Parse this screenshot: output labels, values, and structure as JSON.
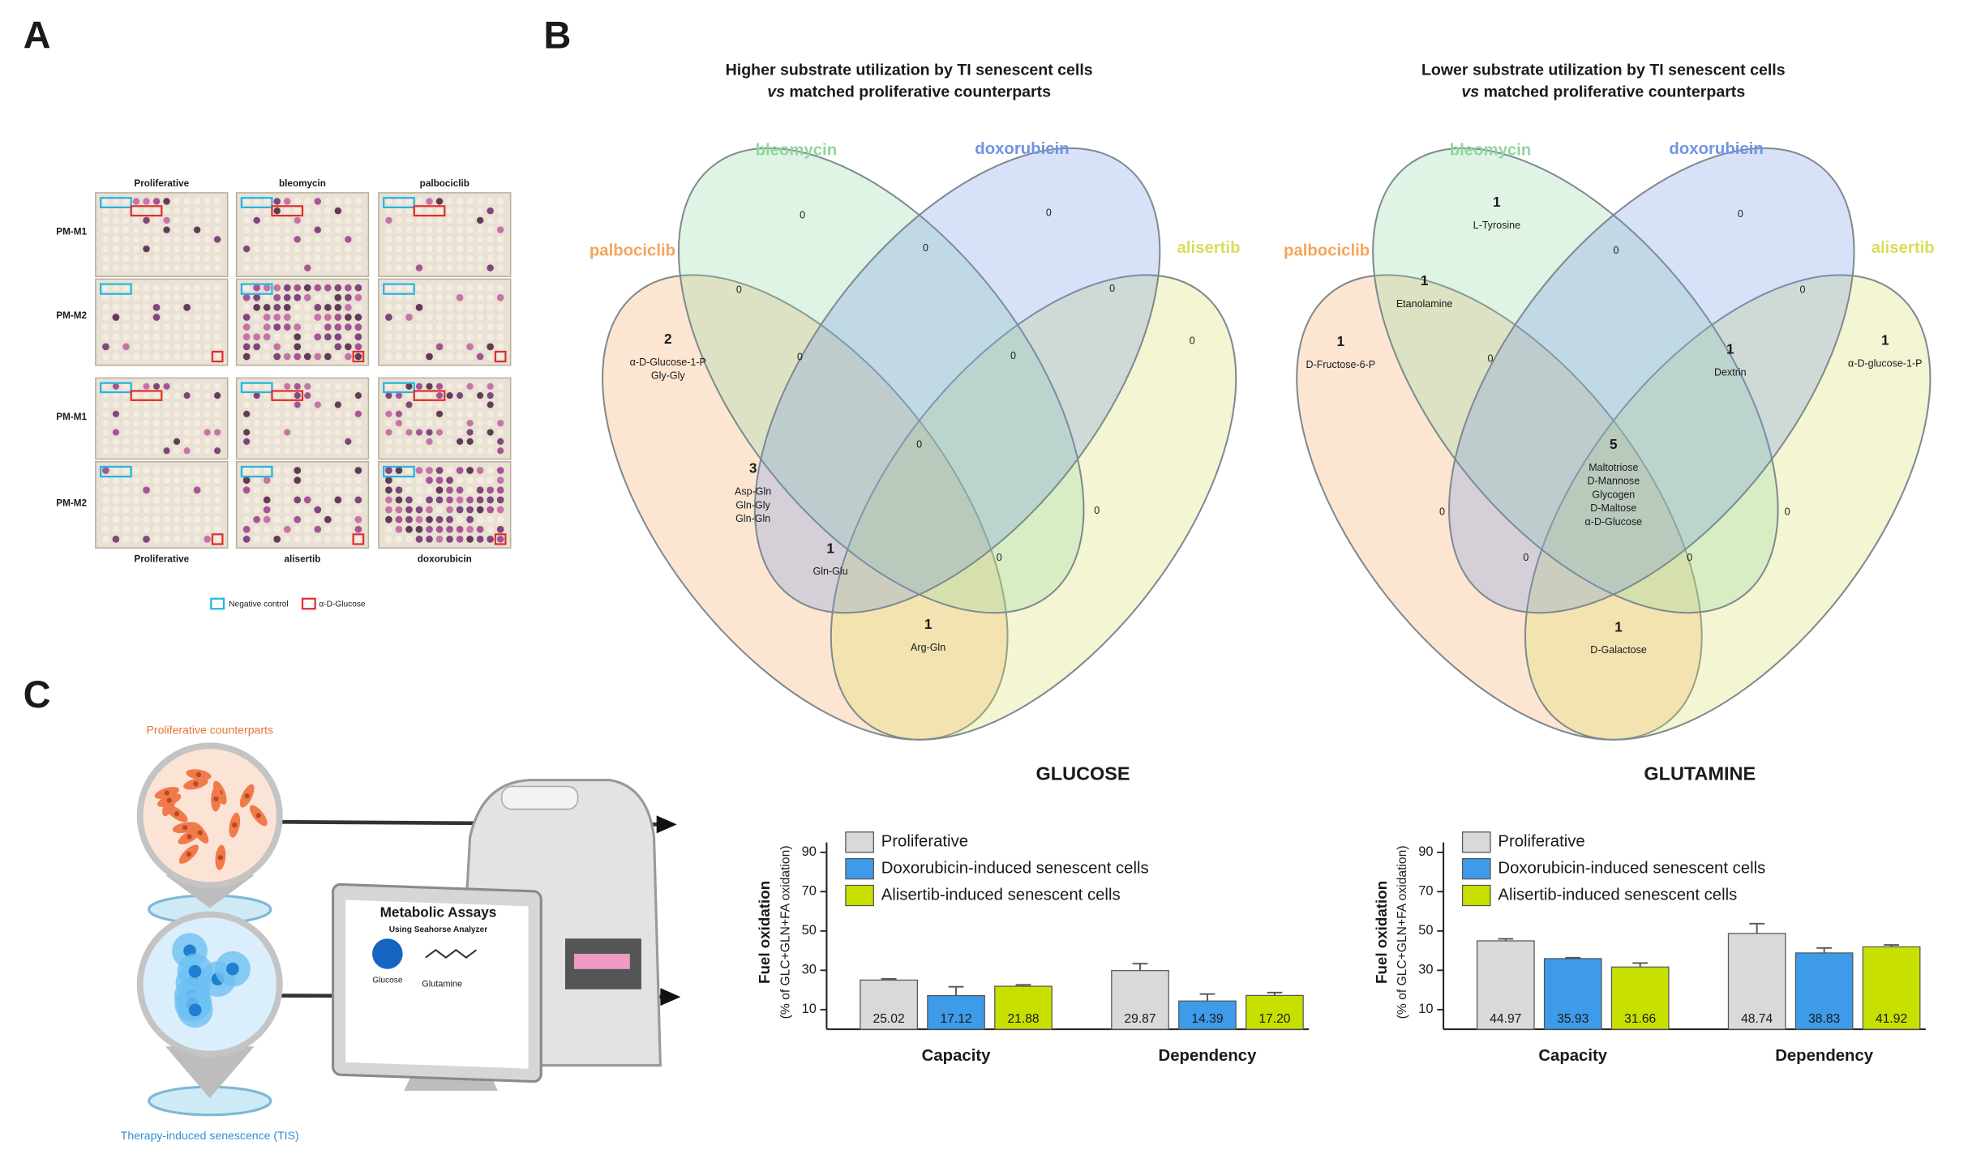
{
  "panel_labels": [
    "A",
    "B",
    "C"
  ],
  "panel_a": {
    "plates_top": [
      "Proliferative",
      "bleomycin",
      "palbociclib"
    ],
    "plates_bottom": [
      "Proliferative",
      "alisertib",
      "doxorubicin"
    ],
    "rows": [
      "PM-M1",
      "PM-M2",
      "PM-M1",
      "PM-M2"
    ],
    "legend": [
      "Negative control",
      "α-D-Glucose"
    ]
  },
  "panel_b": {
    "venns": [
      {
        "title": [
          "Higher substrate utilization by TI senescent cells",
          "vs",
          " matched proliferative counterparts"
        ],
        "sets": [
          "bleomycin",
          "doxorubicin",
          "palbociclib",
          "alisertib"
        ],
        "colors": [
          "#8fd6a0",
          "#6f93e6",
          "#f5a55c",
          "#d9dc5c"
        ],
        "regions": [
          {
            "count": 0,
            "items": []
          },
          {
            "count": 0,
            "items": []
          },
          {
            "count": 0,
            "items": []
          },
          {
            "count": 0,
            "items": []
          },
          {
            "count": 0,
            "items": []
          },
          {
            "count": 2,
            "items": [
              "α-D-Glucose-1-P",
              "Gly-Gly"
            ]
          },
          {
            "count": 0,
            "items": []
          },
          {
            "count": 0,
            "items": []
          },
          {
            "count": 0,
            "items": []
          },
          {
            "count": 0,
            "items": []
          },
          {
            "count": 3,
            "items": [
              "Asp-Gln",
              "Gln-Gly",
              "Gln-Gln"
            ]
          },
          {
            "count": 0,
            "items": []
          },
          {
            "count": 1,
            "items": [
              "Gln-Glu"
            ]
          },
          {
            "count": 0,
            "items": []
          },
          {
            "count": 1,
            "items": [
              "Arg-Gln"
            ]
          }
        ]
      },
      {
        "title": [
          "Lower substrate utilization by TI senescent cells",
          "vs",
          " matched proliferative counterparts"
        ],
        "sets": [
          "bleomycin",
          "doxorubicin",
          "palbociclib",
          "alisertib"
        ],
        "colors": [
          "#8fd6a0",
          "#6f93e6",
          "#f5a55c",
          "#d9dc5c"
        ],
        "regions": [
          {
            "count": 1,
            "items": [
              "L-Tyrosine"
            ]
          },
          {
            "count": 0,
            "items": []
          },
          {
            "count": 0,
            "items": []
          },
          {
            "count": 1,
            "items": [
              "Etanolamine"
            ]
          },
          {
            "count": 0,
            "items": []
          },
          {
            "count": 1,
            "items": [
              "D-Fructose-6-P"
            ]
          },
          {
            "count": 1,
            "items": [
              "α-D-glucose-1-P"
            ]
          },
          {
            "count": 0,
            "items": []
          },
          {
            "count": 1,
            "items": [
              "Dextrin"
            ]
          },
          {
            "count": 5,
            "items": [
              "Maltotriose",
              "D-Mannose",
              "Glycogen",
              "D-Maltose",
              "α-D-Glucose"
            ]
          },
          {
            "count": 0,
            "items": []
          },
          {
            "count": 0,
            "items": []
          },
          {
            "count": 0,
            "items": []
          },
          {
            "count": 0,
            "items": []
          },
          {
            "count": 1,
            "items": [
              "D-Galactose"
            ]
          }
        ]
      }
    ]
  },
  "panel_c": {
    "proliferative": "Proliferative counterparts",
    "senescent": "Therapy-induced senescence (TIS)",
    "assay_title": "Metabolic Assays",
    "assay_subtitle": "Using Seahorse Analyzer",
    "glucose": "Glucose",
    "glutamine": "Glutamine"
  },
  "chart_data": [
    {
      "type": "bar",
      "title": "GLUCOSE",
      "ylabel": "Fuel oxidation",
      "ylabel_sub": "(% of GLC+GLN+FA oxidation)",
      "categories": [
        "Capacity",
        "Dependency"
      ],
      "series": [
        {
          "name": "Proliferative",
          "color": "#d9d9d9",
          "values": [
            25.02,
            29.87
          ],
          "value_labels": [
            "25.02",
            "29.87"
          ],
          "errors": [
            0.6,
            3.5
          ]
        },
        {
          "name": "Doxorubicin-induced  senescent cells",
          "color": "#3d9be9",
          "values": [
            17.12,
            14.39
          ],
          "value_labels": [
            "17.12",
            "14.39"
          ],
          "errors": [
            4.5,
            3.5
          ]
        },
        {
          "name": "Alisertib-induced senescent cells",
          "color": "#c8e000",
          "values": [
            21.88,
            17.2
          ],
          "value_labels": [
            "21.88",
            "17.20"
          ],
          "errors": [
            0.7,
            1.5
          ]
        }
      ],
      "ylim": [
        0,
        95
      ],
      "yticks": [
        10,
        30,
        50,
        70,
        90
      ]
    },
    {
      "type": "bar",
      "title": "GLUTAMINE",
      "ylabel": "Fuel oxidation",
      "ylabel_sub": "(% of GLC+GLN+FA oxidation)",
      "categories": [
        "Capacity",
        "Dependency"
      ],
      "series": [
        {
          "name": "Proliferative",
          "color": "#d9d9d9",
          "values": [
            44.97,
            48.74
          ],
          "value_labels": [
            "44.97",
            "48.74"
          ],
          "errors": [
            1.0,
            5.0
          ]
        },
        {
          "name": "Doxorubicin-induced  senescent cells",
          "color": "#3d9be9",
          "values": [
            35.93,
            38.83
          ],
          "value_labels": [
            "35.93",
            "38.83"
          ],
          "errors": [
            0.5,
            2.5
          ]
        },
        {
          "name": "Alisertib-induced senescent cells",
          "color": "#c8e000",
          "values": [
            31.66,
            41.92
          ],
          "value_labels": [
            "31.66",
            "41.92"
          ],
          "errors": [
            2.0,
            1.0
          ]
        }
      ],
      "ylim": [
        0,
        95
      ],
      "yticks": [
        10,
        30,
        50,
        70,
        90
      ]
    }
  ]
}
